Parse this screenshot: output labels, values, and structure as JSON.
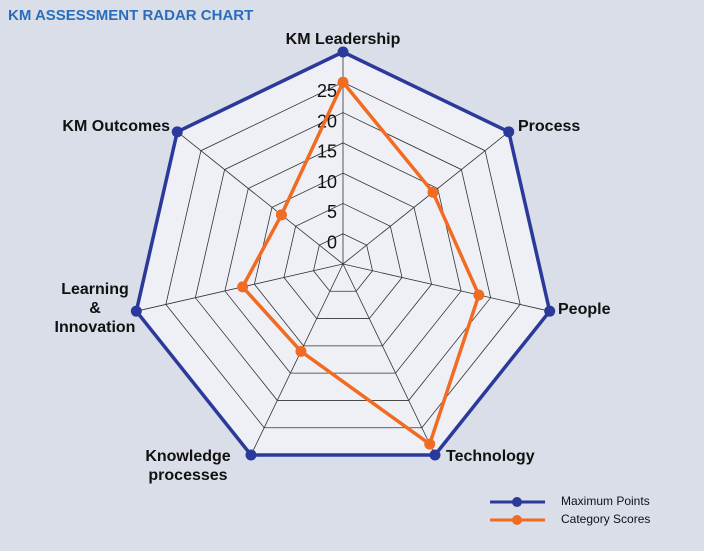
{
  "chart_data": {
    "type": "radar",
    "title": "KM ASSESSMENT RADAR CHART",
    "categories": [
      "KM Leadership",
      "Process",
      "People",
      "Technology",
      "Knowledge\nprocesses",
      "Learning\n&\nInnovation",
      "KM Outcomes"
    ],
    "series": [
      {
        "name": "Maximum Points",
        "color": "#2b3a9a",
        "values": [
          30,
          30,
          30,
          30,
          30,
          30,
          30
        ]
      },
      {
        "name": "Category Scores",
        "color": "#f26b22",
        "values": [
          25,
          14,
          18,
          28,
          11,
          12,
          8
        ]
      }
    ],
    "ylim": [
      -5,
      30
    ],
    "yticks": [
      0,
      5,
      10,
      15,
      20,
      25
    ],
    "grid": true,
    "legend": "lower right"
  }
}
